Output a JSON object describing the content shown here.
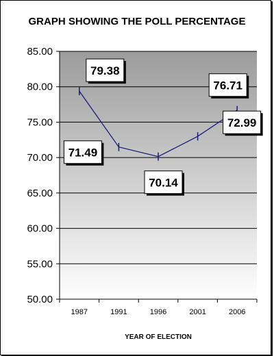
{
  "chart_data": {
    "type": "line",
    "title": "GRAPH SHOWING THE POLL PERCENTAGE",
    "xlabel": "YEAR OF ELECTION",
    "ylabel": "",
    "categories": [
      "1987",
      "1991",
      "1996",
      "2001",
      "2006"
    ],
    "series": [
      {
        "values": [
          79.38,
          71.49,
          70.14,
          72.99,
          76.71
        ]
      }
    ],
    "data_labels": [
      "79.38",
      "71.49",
      "70.14",
      "72.99",
      "76.71"
    ],
    "y_ticks": [
      "50.00",
      "55.00",
      "60.00",
      "65.00",
      "70.00",
      "75.00",
      "80.00",
      "85.00"
    ],
    "ylim": [
      50,
      85
    ],
    "grid": true,
    "legend": "none",
    "colors": {
      "plot_gradient_top": "#9c9c9c",
      "plot_gradient_bottom": "#ffffff",
      "line": "#1a1a7a",
      "gridline": "#000000"
    }
  }
}
